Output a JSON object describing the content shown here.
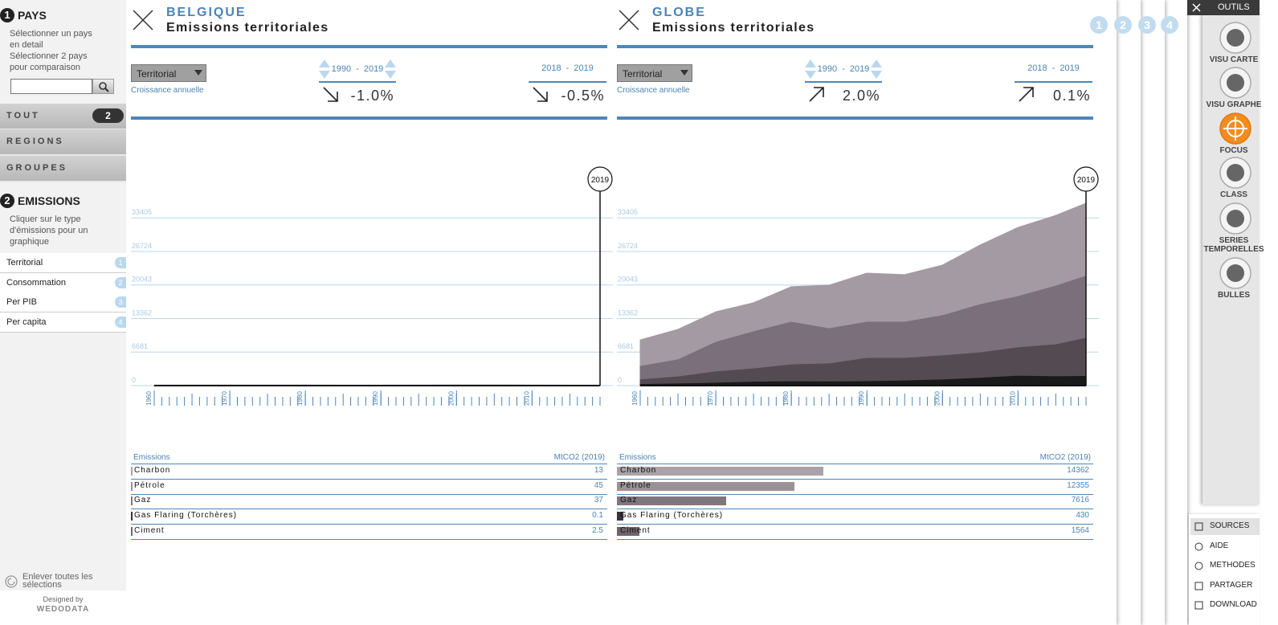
{
  "sidebar": {
    "step1": {
      "number": 1,
      "title": "PAYS",
      "lines": [
        "Sélectionner un pays",
        "en detail",
        "Sélectionner 2 pays",
        "pour comparaison"
      ]
    },
    "filters": [
      {
        "label": "TOUT",
        "count": 2
      },
      {
        "label": "REGIONS"
      },
      {
        "label": "GROUPES"
      }
    ],
    "step2": {
      "number": 2,
      "title": "EMISSIONS",
      "lines": [
        "Cliquer sur le type",
        "d'émissions pour un",
        "graphique"
      ]
    },
    "types": [
      {
        "label": "Territorial",
        "number": 1
      },
      {
        "label": "Consommation",
        "number": 2
      },
      {
        "label": "Per PIB",
        "number": 3
      },
      {
        "label": "Per capita",
        "number": 4
      }
    ],
    "reset": [
      "Enlever toutes les",
      "sélections"
    ],
    "credit": [
      "Designed by",
      "WEDODATA"
    ]
  },
  "panels": [
    {
      "country": "BELGIQUE",
      "subtitle": "Emissions territoriales",
      "selector": "Territorial",
      "growth_label": "Croissance annuelle",
      "periods": [
        {
          "start": 1990,
          "separator": "-",
          "end": 2019,
          "value": "-1.0%",
          "trend": "down"
        },
        {
          "start": 2018,
          "separator": "-",
          "end": 2019,
          "value": "-0.5%",
          "trend": "down"
        }
      ],
      "chart": {
        "type": "area",
        "stacked": true,
        "x": [
          1960,
          1965,
          1970,
          1975,
          1980,
          1985,
          1990,
          1995,
          2000,
          2005,
          2010,
          2015,
          2019
        ],
        "series": [
          {
            "color": "#1a1a1a",
            "values": [
              0,
              0,
              0,
              0,
              0,
              0,
              0,
              0,
              0,
              0,
              0,
              0,
              0.1
            ]
          },
          {
            "color": "#1a1a1a",
            "values": [
              1.5,
              2,
              3,
              3,
              3,
              3,
              3,
              3,
              3,
              3,
              2.5,
              2.5,
              2.5
            ]
          },
          {
            "color": "#544a52",
            "values": [
              1,
              3,
              10,
              15,
              17,
              15,
              18,
              25,
              30,
              33,
              34,
              32,
              37
            ]
          },
          {
            "color": "#7a6f7a",
            "values": [
              30,
              45,
              65,
              60,
              55,
              45,
              50,
              55,
              60,
              60,
              55,
              48,
              45
            ]
          },
          {
            "color": "#a49aa3",
            "values": [
              70,
              65,
              50,
              40,
              45,
              35,
              35,
              30,
              25,
              20,
              16,
              14,
              13
            ]
          }
        ],
        "xlim": [
          1960,
          2019
        ],
        "xticks": [
          1960,
          1970,
          1980,
          1990,
          2000,
          2010
        ],
        "ylim": [
          0,
          38400
        ],
        "yticks": [
          0,
          6681,
          13362,
          20043,
          26724,
          33405
        ],
        "grid": true,
        "marker": 2019
      },
      "table": {
        "header": [
          "Emissions",
          "MtCO2 (2019)"
        ],
        "rows": [
          {
            "name": "Charbon",
            "value": 13,
            "color": "#aaa2a8"
          },
          {
            "name": "Pétrole",
            "value": 45,
            "color": "#9a9198"
          },
          {
            "name": "Gaz",
            "value": 37,
            "color": "#80767e"
          },
          {
            "name": "Gas Flaring (Torchères)",
            "value": 0.1,
            "color": "#3a3339"
          },
          {
            "name": "Ciment",
            "value": 2.5,
            "color": "#6e646b"
          }
        ]
      }
    },
    {
      "country": "GLOBE",
      "subtitle": "Emissions territoriales",
      "selector": "Territorial",
      "growth_label": "Croissance annuelle",
      "periods": [
        {
          "start": 1990,
          "separator": "-",
          "end": 2019,
          "value": "2.0%",
          "trend": "up"
        },
        {
          "start": 2018,
          "separator": "-",
          "end": 2019,
          "value": "0.1%",
          "trend": "up"
        }
      ],
      "chart": {
        "type": "area",
        "stacked": true,
        "x": [
          1960,
          1965,
          1970,
          1975,
          1980,
          1985,
          1990,
          1995,
          2000,
          2005,
          2010,
          2015,
          2019
        ],
        "series": [
          {
            "color": "#1a1a1a",
            "values": [
              180,
              250,
              300,
              400,
              350,
              250,
              250,
              250,
              300,
              330,
              350,
              400,
              430
            ]
          },
          {
            "color": "#1a1a1a",
            "values": [
              200,
              250,
              350,
              450,
              600,
              650,
              700,
              850,
              1000,
              1300,
              1700,
              1550,
              1564
            ]
          },
          {
            "color": "#544a52",
            "values": [
              920,
              1400,
              2250,
              2650,
              3350,
              3600,
              4650,
              4500,
              4800,
              5070,
              5650,
              6350,
              7616
            ]
          },
          {
            "color": "#7a6f7a",
            "values": [
              2700,
              3400,
              5900,
              7400,
              8500,
              7000,
              7200,
              7200,
              8000,
              9600,
              10200,
              11700,
              12355
            ]
          },
          {
            "color": "#a49aa3",
            "values": [
              5100,
              5900,
              5900,
              5600,
              6900,
              8500,
              9600,
              9300,
              9900,
              11700,
              13600,
              13900,
              14362
            ]
          }
        ],
        "xlim": [
          1960,
          2019
        ],
        "xticks": [
          1960,
          1970,
          1980,
          1990,
          2000,
          2010
        ],
        "ylim": [
          0,
          38400
        ],
        "yticks": [
          0,
          6681,
          13362,
          20043,
          26724,
          33405
        ],
        "grid": true,
        "marker": 2019
      },
      "table": {
        "header": [
          "Emissions",
          "MtCO2 (2019)"
        ],
        "rows": [
          {
            "name": "Charbon",
            "value": 14362,
            "color": "#aaa2a8"
          },
          {
            "name": "Pétrole",
            "value": 12355,
            "color": "#9a9198"
          },
          {
            "name": "Gaz",
            "value": 7616,
            "color": "#80767e"
          },
          {
            "name": "Gas Flaring (Torchères)",
            "value": 430,
            "color": "#3a3339"
          },
          {
            "name": "Ciment",
            "value": 1564,
            "color": "#6e646b"
          }
        ]
      }
    }
  ],
  "tabs": [
    1,
    2,
    3,
    4
  ],
  "tools": {
    "header": "OUTILS",
    "items": [
      [
        "VISU CARTE"
      ],
      [
        "VISU GRAPHE"
      ],
      [
        "FOCUS"
      ],
      [
        "CLASS"
      ],
      [
        "SERIES",
        "TEMPORELLES"
      ],
      [
        "BULLES"
      ]
    ],
    "links": [
      "SOURCES",
      "AIDE",
      "METHODES",
      "PARTAGER",
      "DOWNLOAD"
    ]
  }
}
